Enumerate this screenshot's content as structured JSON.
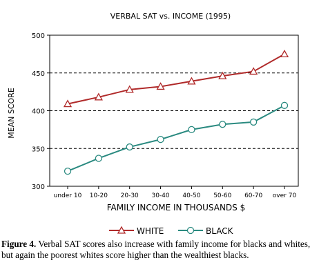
{
  "chart_data": {
    "type": "line",
    "title": "VERBAL SAT vs. INCOME (1995)",
    "xlabel": "FAMILY INCOME IN THOUSANDS $",
    "ylabel": "MEAN SCORE",
    "categories": [
      "under 10",
      "10-20",
      "20-30",
      "30-40",
      "40-50",
      "50-60",
      "60-70",
      "over 70"
    ],
    "ylim": [
      300,
      500
    ],
    "yticks": [
      300,
      350,
      400,
      450,
      500
    ],
    "grid": "dashed horizontal at 350, 400, 450",
    "legend_position": "bottom",
    "series": [
      {
        "name": "WHITE",
        "marker": "triangle",
        "color": "#b02a2a",
        "values": [
          409,
          418,
          428,
          432,
          439,
          446,
          452,
          475
        ]
      },
      {
        "name": "BLACK",
        "marker": "circle",
        "color": "#2a8a80",
        "values": [
          320,
          337,
          352,
          362,
          375,
          382,
          385,
          407
        ]
      }
    ]
  },
  "caption": {
    "label": "Figure 4.",
    "text": " Verbal SAT scores also increase with family income for blacks and whites, but again the poorest whites score higher than the wealthiest blacks."
  }
}
